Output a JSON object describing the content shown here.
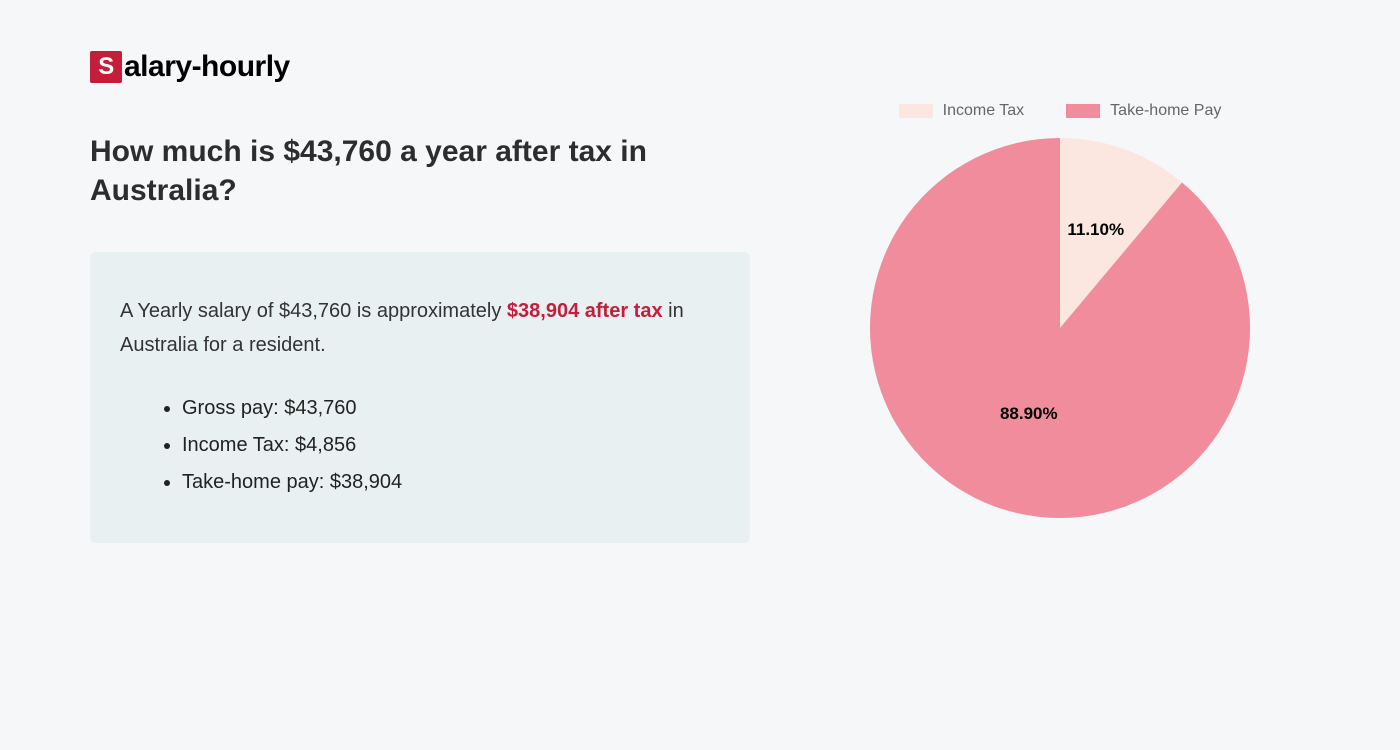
{
  "logo": {
    "badge_letter": "S",
    "rest": "alary-hourly"
  },
  "heading": "How much is $43,760 a year after tax in Australia?",
  "summary": {
    "prefix": "A Yearly salary of $43,760 is approximately ",
    "highlight": "$38,904 after tax",
    "suffix": " in Australia for a resident."
  },
  "bullets": [
    "Gross pay: $43,760",
    "Income Tax: $4,856",
    "Take-home pay: $38,904"
  ],
  "chart": {
    "type": "pie",
    "radius": 190,
    "background_color": "#f5f7f9",
    "legend": [
      {
        "label": "Income Tax",
        "color": "#fce6e0"
      },
      {
        "label": "Take-home Pay",
        "color": "#f08c9c"
      }
    ],
    "slices": [
      {
        "label": "11.10%",
        "value": 11.1,
        "color": "#fce6e0",
        "label_r": 0.55,
        "label_angle_deg": 20
      },
      {
        "label": "88.90%",
        "value": 88.9,
        "color": "#f08c9c",
        "label_r": 0.48,
        "label_angle_deg": 200
      }
    ],
    "start_angle_deg": 0,
    "label_fontsize": 17,
    "label_fontweight": 700,
    "legend_fontsize": 16,
    "legend_color": "#666666"
  },
  "colors": {
    "page_bg": "#f5f7f9",
    "box_bg": "#e8f0f2",
    "text": "#2d2d2d",
    "accent": "#c41e3a"
  }
}
